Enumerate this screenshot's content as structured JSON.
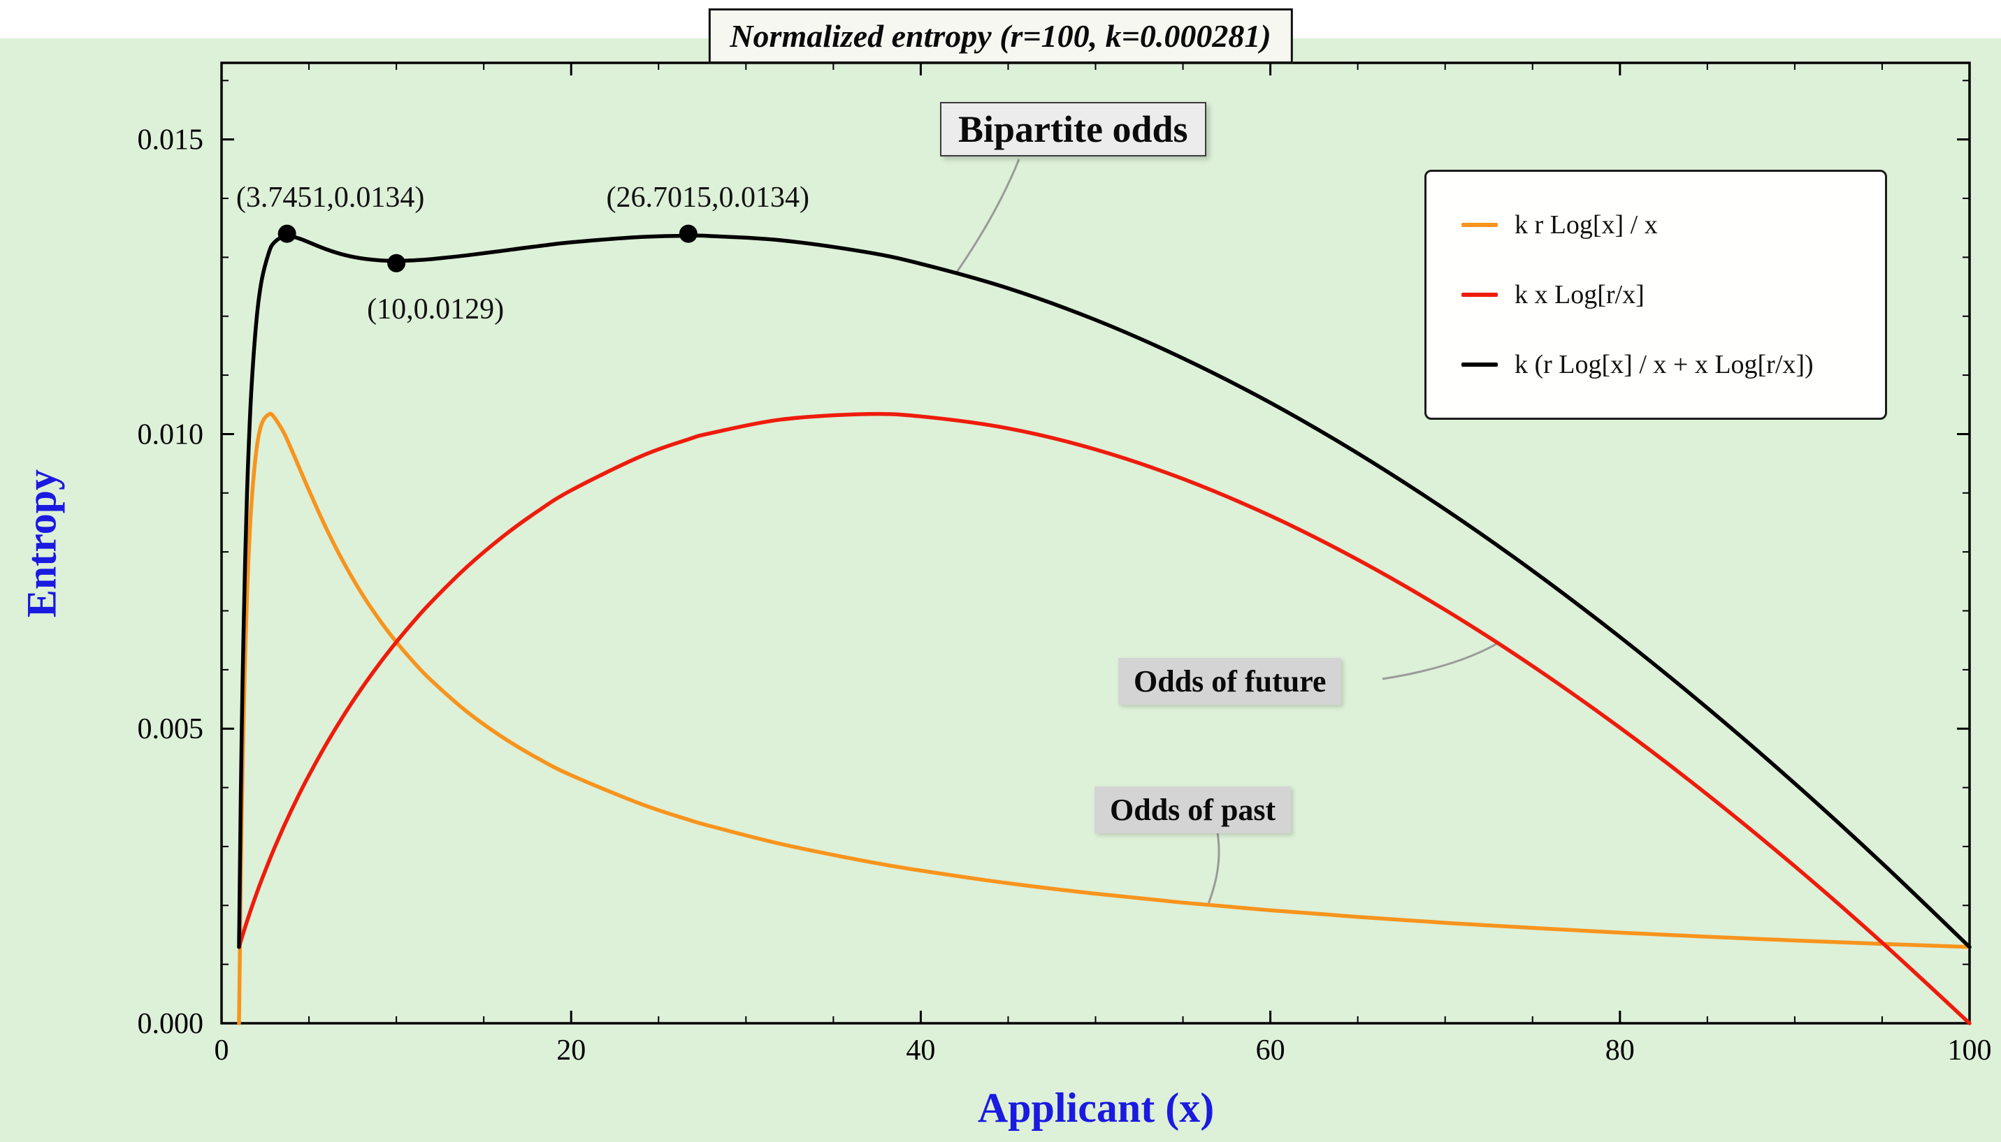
{
  "chart_data": {
    "type": "line",
    "title": "Normalized entropy (r=100, k=0.000281)",
    "xlabel": "Applicant (x)",
    "ylabel": "Entropy",
    "xlim": [
      0,
      100
    ],
    "ylim": [
      0,
      0.0163
    ],
    "grid": false,
    "frame": true,
    "legend_position": "top-right",
    "params": {
      "r": 100,
      "k": 0.000281
    },
    "colors": {
      "background": "#ddf0d8",
      "axis_label": "#1a1ae0",
      "frame": "#000000",
      "leader_line": "#9a9a9a"
    },
    "x_ticks": {
      "values": [
        0,
        20,
        40,
        60,
        80,
        100
      ],
      "labels": [
        "0",
        "20",
        "40",
        "60",
        "80",
        "100"
      ],
      "minor_step": 5
    },
    "y_ticks": {
      "values": [
        0,
        0.005,
        0.01,
        0.015
      ],
      "labels": [
        "0.000",
        "0.005",
        "0.010",
        "0.015"
      ],
      "minor_step": 0.001
    },
    "x": [
      1,
      1.1,
      1.2,
      1.35,
      1.5,
      1.7,
      2,
      2.3,
      2.718,
      3,
      3.5,
      3.7451,
      4,
      4.5,
      5,
      6,
      7,
      8,
      9,
      10,
      11,
      12,
      14,
      16,
      18,
      20,
      24,
      26.7015,
      28,
      32,
      36.788,
      40,
      45,
      50,
      55,
      60,
      65,
      70,
      75,
      80,
      85,
      90,
      95,
      100
    ],
    "series": [
      {
        "id": "odds-of-past",
        "name": "k r Log[x] / x",
        "color": "#f7941d",
        "y": [
          0,
          0.002435,
          0.004269,
          0.006247,
          0.007596,
          0.008771,
          0.009739,
          0.010176,
          0.010337,
          0.01029,
          0.010058,
          0.00991,
          0.009739,
          0.009392,
          0.009045,
          0.008392,
          0.007811,
          0.007304,
          0.00686,
          0.00647,
          0.006126,
          0.005819,
          0.005297,
          0.004869,
          0.004512,
          0.004209,
          0.003721,
          0.003456,
          0.003344,
          0.003043,
          0.002754,
          0.002591,
          0.002377,
          0.002199,
          0.002047,
          0.001918,
          0.001805,
          0.001705,
          0.001618,
          0.001539,
          0.001469,
          0.001405,
          0.001347,
          0.001294
        ]
      },
      {
        "id": "odds-of-future",
        "name": "k x Log[r/x]",
        "color": "#ee1c0c",
        "y": [
          0.001294,
          0.001394,
          0.001491,
          0.001633,
          0.00177,
          0.001946,
          0.002199,
          0.002438,
          0.002754,
          0.002956,
          0.003297,
          0.003456,
          0.003618,
          0.003921,
          0.004209,
          0.004743,
          0.005231,
          0.005678,
          0.00609,
          0.00647,
          0.006823,
          0.00715,
          0.007735,
          0.008239,
          0.008673,
          0.009045,
          0.009624,
          0.00991,
          0.010016,
          0.010246,
          0.010338,
          0.010299,
          0.010097,
          0.009739,
          0.009239,
          0.008613,
          0.007868,
          0.007016,
          0.006063,
          0.005016,
          0.003882,
          0.002665,
          0.001369,
          0
        ]
      },
      {
        "id": "bipartite-odds",
        "name": "k (r Log[x] / x + x Log[r/x])",
        "color": "#000000",
        "y": [
          0.001294,
          0.003829,
          0.00576,
          0.00788,
          0.009366,
          0.010717,
          0.011938,
          0.012614,
          0.013091,
          0.013246,
          0.013355,
          0.013366,
          0.013357,
          0.013313,
          0.013254,
          0.013135,
          0.013042,
          0.012982,
          0.01295,
          0.01294,
          0.012949,
          0.012969,
          0.013032,
          0.013108,
          0.013185,
          0.013254,
          0.013345,
          0.013366,
          0.01336,
          0.013289,
          0.013092,
          0.01289,
          0.012474,
          0.011938,
          0.011286,
          0.010531,
          0.009673,
          0.008721,
          0.007681,
          0.006555,
          0.005351,
          0.00407,
          0.002716,
          0.001294
        ]
      }
    ],
    "marked_points": [
      {
        "x": 3.7451,
        "y": 0.0134,
        "label": "(3.7451,0.0134)"
      },
      {
        "x": 10,
        "y": 0.0129,
        "label": "(10,0.0129)"
      },
      {
        "x": 26.7015,
        "y": 0.0134,
        "label": "(26.7015,0.0134)"
      }
    ],
    "annotations": [
      {
        "text": "Bipartite odds",
        "series_index": 2
      },
      {
        "text": "Odds of future",
        "series_index": 1
      },
      {
        "text": "Odds of past",
        "series_index": 0
      }
    ]
  }
}
